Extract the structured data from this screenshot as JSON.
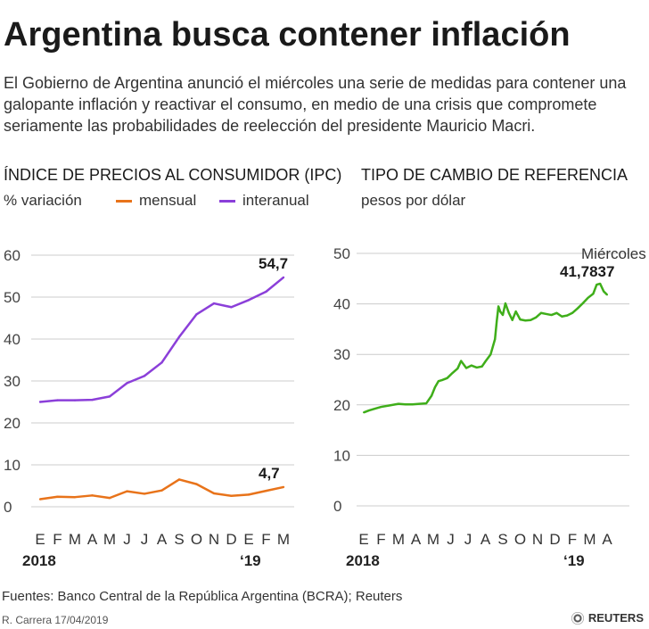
{
  "header": {
    "title": "Argentina busca contener inflación",
    "subtitle": "El Gobierno de Argentina anunció el miércoles una serie de medidas para contener una galopante inflación y reactivar el consumo, en medio de una crisis que compromete seriamente las probabilidades de reelección del presidente Mauricio Macri."
  },
  "left_panel": {
    "title": "ÍNDICE DE PRECIOS AL CONSUMIDOR (IPC)",
    "unit": "% variación",
    "legend": {
      "mensual": "mensual",
      "interanual": "interanual"
    }
  },
  "right_panel": {
    "title": "TIPO DE CAMBIO DE REFERENCIA",
    "unit": "pesos por dólar"
  },
  "colors": {
    "mensual": "#e8731a",
    "interanual": "#8b3fd9",
    "cambio": "#3fae1a",
    "grid": "#cccccc"
  },
  "chart_data": [
    {
      "type": "line",
      "title": "ÍNDICE DE PRECIOS AL CONSUMIDOR (IPC)",
      "ylabel": "% variación",
      "categories": [
        "E",
        "F",
        "M",
        "A",
        "M",
        "J",
        "J",
        "A",
        "S",
        "O",
        "N",
        "D",
        "E",
        "F",
        "M"
      ],
      "year_labels": [
        {
          "index": 0,
          "text": "2018"
        },
        {
          "index": 12,
          "text": "‘19"
        }
      ],
      "ylim": [
        0,
        60
      ],
      "yticks": [
        0,
        10,
        20,
        30,
        40,
        50,
        60
      ],
      "grid": true,
      "series": [
        {
          "name": "mensual",
          "values": [
            1.8,
            2.4,
            2.3,
            2.7,
            2.1,
            3.7,
            3.1,
            3.9,
            6.5,
            5.4,
            3.2,
            2.6,
            2.9,
            3.8,
            4.7
          ],
          "end_label": "4,7"
        },
        {
          "name": "interanual",
          "values": [
            25.0,
            25.4,
            25.4,
            25.5,
            26.3,
            29.5,
            31.2,
            34.4,
            40.5,
            45.9,
            48.5,
            47.6,
            49.3,
            51.3,
            54.7
          ],
          "end_label": "54,7"
        }
      ]
    },
    {
      "type": "line",
      "title": "TIPO DE CAMBIO DE REFERENCIA",
      "ylabel": "pesos por dólar",
      "categories": [
        "E",
        "F",
        "M",
        "A",
        "M",
        "J",
        "J",
        "A",
        "S",
        "O",
        "N",
        "D",
        "F",
        "M",
        "A"
      ],
      "year_labels": [
        {
          "index": 0,
          "text": "2018"
        },
        {
          "index": 12,
          "text": "‘19"
        }
      ],
      "ylim": [
        0,
        50
      ],
      "yticks": [
        0,
        10,
        20,
        30,
        40,
        50
      ],
      "grid": true,
      "annotation": {
        "label": "Miércoles",
        "value_label": "41,7837"
      },
      "series": [
        {
          "name": "",
          "x": [
            0,
            0.3,
            0.6,
            1.0,
            1.5,
            2.0,
            2.4,
            2.8,
            3.2,
            3.6,
            3.9,
            4.1,
            4.3,
            4.5,
            4.8,
            5.1,
            5.4,
            5.6,
            5.9,
            6.2,
            6.5,
            6.8,
            7.0,
            7.3,
            7.55,
            7.65,
            7.75,
            7.85,
            8.0,
            8.15,
            8.35,
            8.55,
            8.75,
            9.0,
            9.3,
            9.6,
            9.9,
            10.2,
            10.5,
            10.8,
            11.1,
            11.4,
            11.7,
            12.0,
            12.3,
            12.6,
            12.9,
            13.2,
            13.4,
            13.6,
            13.8,
            14.0
          ],
          "values": [
            18.5,
            18.9,
            19.2,
            19.6,
            19.9,
            20.2,
            20.1,
            20.1,
            20.2,
            20.3,
            21.8,
            23.5,
            24.7,
            24.9,
            25.3,
            26.3,
            27.2,
            28.7,
            27.3,
            27.8,
            27.4,
            27.6,
            28.6,
            30.0,
            33.0,
            36.5,
            39.5,
            38.5,
            37.8,
            40.1,
            38.2,
            36.8,
            38.5,
            36.9,
            36.7,
            36.8,
            37.3,
            38.2,
            38.0,
            37.8,
            38.2,
            37.5,
            37.7,
            38.2,
            39.1,
            40.1,
            41.2,
            42.0,
            43.8,
            44.0,
            42.5,
            41.8
          ]
        }
      ]
    }
  ],
  "footer": {
    "source": "Fuentes: Banco Central de la República Argentina (BCRA); Reuters",
    "credit": "R. Carrera 17/04/2019",
    "brand": "REUTERS"
  }
}
